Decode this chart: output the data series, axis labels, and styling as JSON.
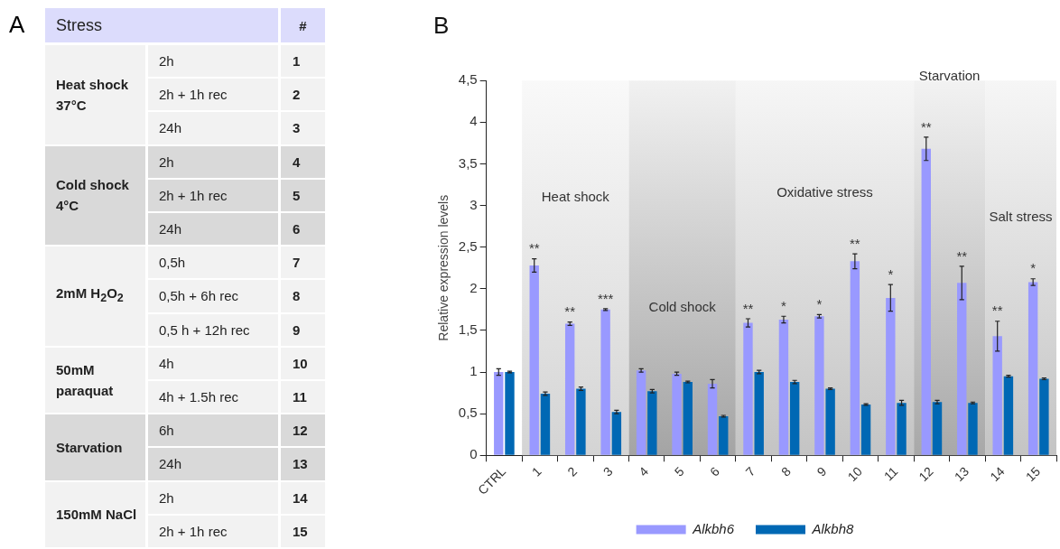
{
  "chart_data": [
    {
      "type": "other",
      "title": "A",
      "annotations": [
        "Stress",
        "#"
      ],
      "categories": [
        "2h",
        "2h + 1h rec",
        "24h",
        "2h",
        "2h + 1h rec",
        "24h",
        "0,5h",
        "0,5h + 6h rec",
        "0,5 h + 12h rec",
        "4h",
        "4h + 1.5h rec",
        "6h",
        "24h",
        "2h",
        "2h + 1h rec"
      ],
      "y_categories": [
        "Heat shock 37°C",
        null,
        null,
        "Cold shock 4°C",
        null,
        null,
        "2mM H$_{2}$O$_{2}$",
        null,
        null,
        "50mM paraquat",
        null,
        "Starvation",
        null,
        "150mM NaCl",
        null
      ],
      "values": [
        1,
        2,
        3,
        4,
        5,
        6,
        7,
        8,
        9,
        10,
        11,
        12,
        13,
        14,
        15
      ],
      "data_labels": true,
      "colors": [
        "#f2f2f2",
        "#f2f2f2",
        "#f2f2f2",
        "#d9d9d9",
        "#d9d9d9",
        "#d9d9d9",
        "#f2f2f2",
        "#f2f2f2",
        "#f2f2f2",
        "#f2f2f2",
        "#f2f2f2",
        "#d9d9d9",
        "#d9d9d9",
        "#f2f2f2",
        "#f2f2f2"
      ]
    },
    {
      "type": "bar",
      "title": "B",
      "ylabel": "Relative expression levels",
      "categories": [
        "CTRL",
        "1",
        "2",
        "3",
        "4",
        "5",
        "6",
        "7",
        "8",
        "9",
        "10",
        "11",
        "12",
        "13",
        "14",
        "15"
      ],
      "series": [
        {
          "name": "Alkbh6",
          "color": "#9999ff",
          "values": [
            1.0,
            2.28,
            1.58,
            1.75,
            1.02,
            0.98,
            0.86,
            1.59,
            1.63,
            1.67,
            2.33,
            1.89,
            3.68,
            2.07,
            1.43,
            2.08
          ],
          "errors": [
            0.04,
            0.08,
            0.02,
            0.01,
            0.02,
            0.02,
            0.05,
            0.05,
            0.04,
            0.02,
            0.09,
            0.16,
            0.14,
            0.2,
            0.18,
            0.04
          ],
          "value_labels": [
            null,
            "**",
            "**",
            "***",
            null,
            null,
            null,
            "**",
            "*",
            "*",
            "**",
            "*",
            "**",
            "**",
            "**",
            "*"
          ]
        },
        {
          "name": "Alkbh8",
          "color": "#0068b4",
          "values": [
            1.0,
            0.74,
            0.8,
            0.52,
            0.77,
            0.88,
            0.47,
            1.0,
            0.88,
            0.8,
            0.61,
            0.63,
            0.64,
            0.63,
            0.95,
            0.92
          ],
          "errors": [
            0.01,
            0.02,
            0.02,
            0.02,
            0.02,
            0.01,
            0.01,
            0.02,
            0.02,
            0.01,
            0.01,
            0.03,
            0.02,
            0.01,
            0.01,
            0.01
          ]
        }
      ],
      "ylim": [
        0,
        4.5
      ],
      "yticks": [
        0,
        {
          "value": 0.5,
          "label": "0,5"
        },
        1,
        {
          "value": 1.5,
          "label": "1,5"
        },
        2,
        {
          "value": 2.5,
          "label": "2,5"
        },
        3,
        {
          "value": 3.5,
          "label": "3,5"
        },
        4,
        {
          "value": 4.5,
          "label": "4,5"
        }
      ],
      "grid": false,
      "legend": "bottom",
      "bands": [
        {
          "axis": "x",
          "from": "1",
          "to": "3",
          "color": "#d4d4d4",
          "label": "Heat shock"
        },
        {
          "axis": "x",
          "from": "4",
          "to": "6",
          "color": "#a4a4a4",
          "label": "Cold shock"
        },
        {
          "axis": "x",
          "from": "7",
          "to": "11",
          "color": "#c4c4c4",
          "label": "Oxidative stress"
        },
        {
          "axis": "x",
          "from": "12",
          "to": "13",
          "color": "#a8a8a8",
          "label": "Starvation"
        },
        {
          "axis": "x",
          "from": "14",
          "to": "15",
          "color": "#c4c4c4",
          "label": "Salt stress"
        }
      ]
    }
  ]
}
